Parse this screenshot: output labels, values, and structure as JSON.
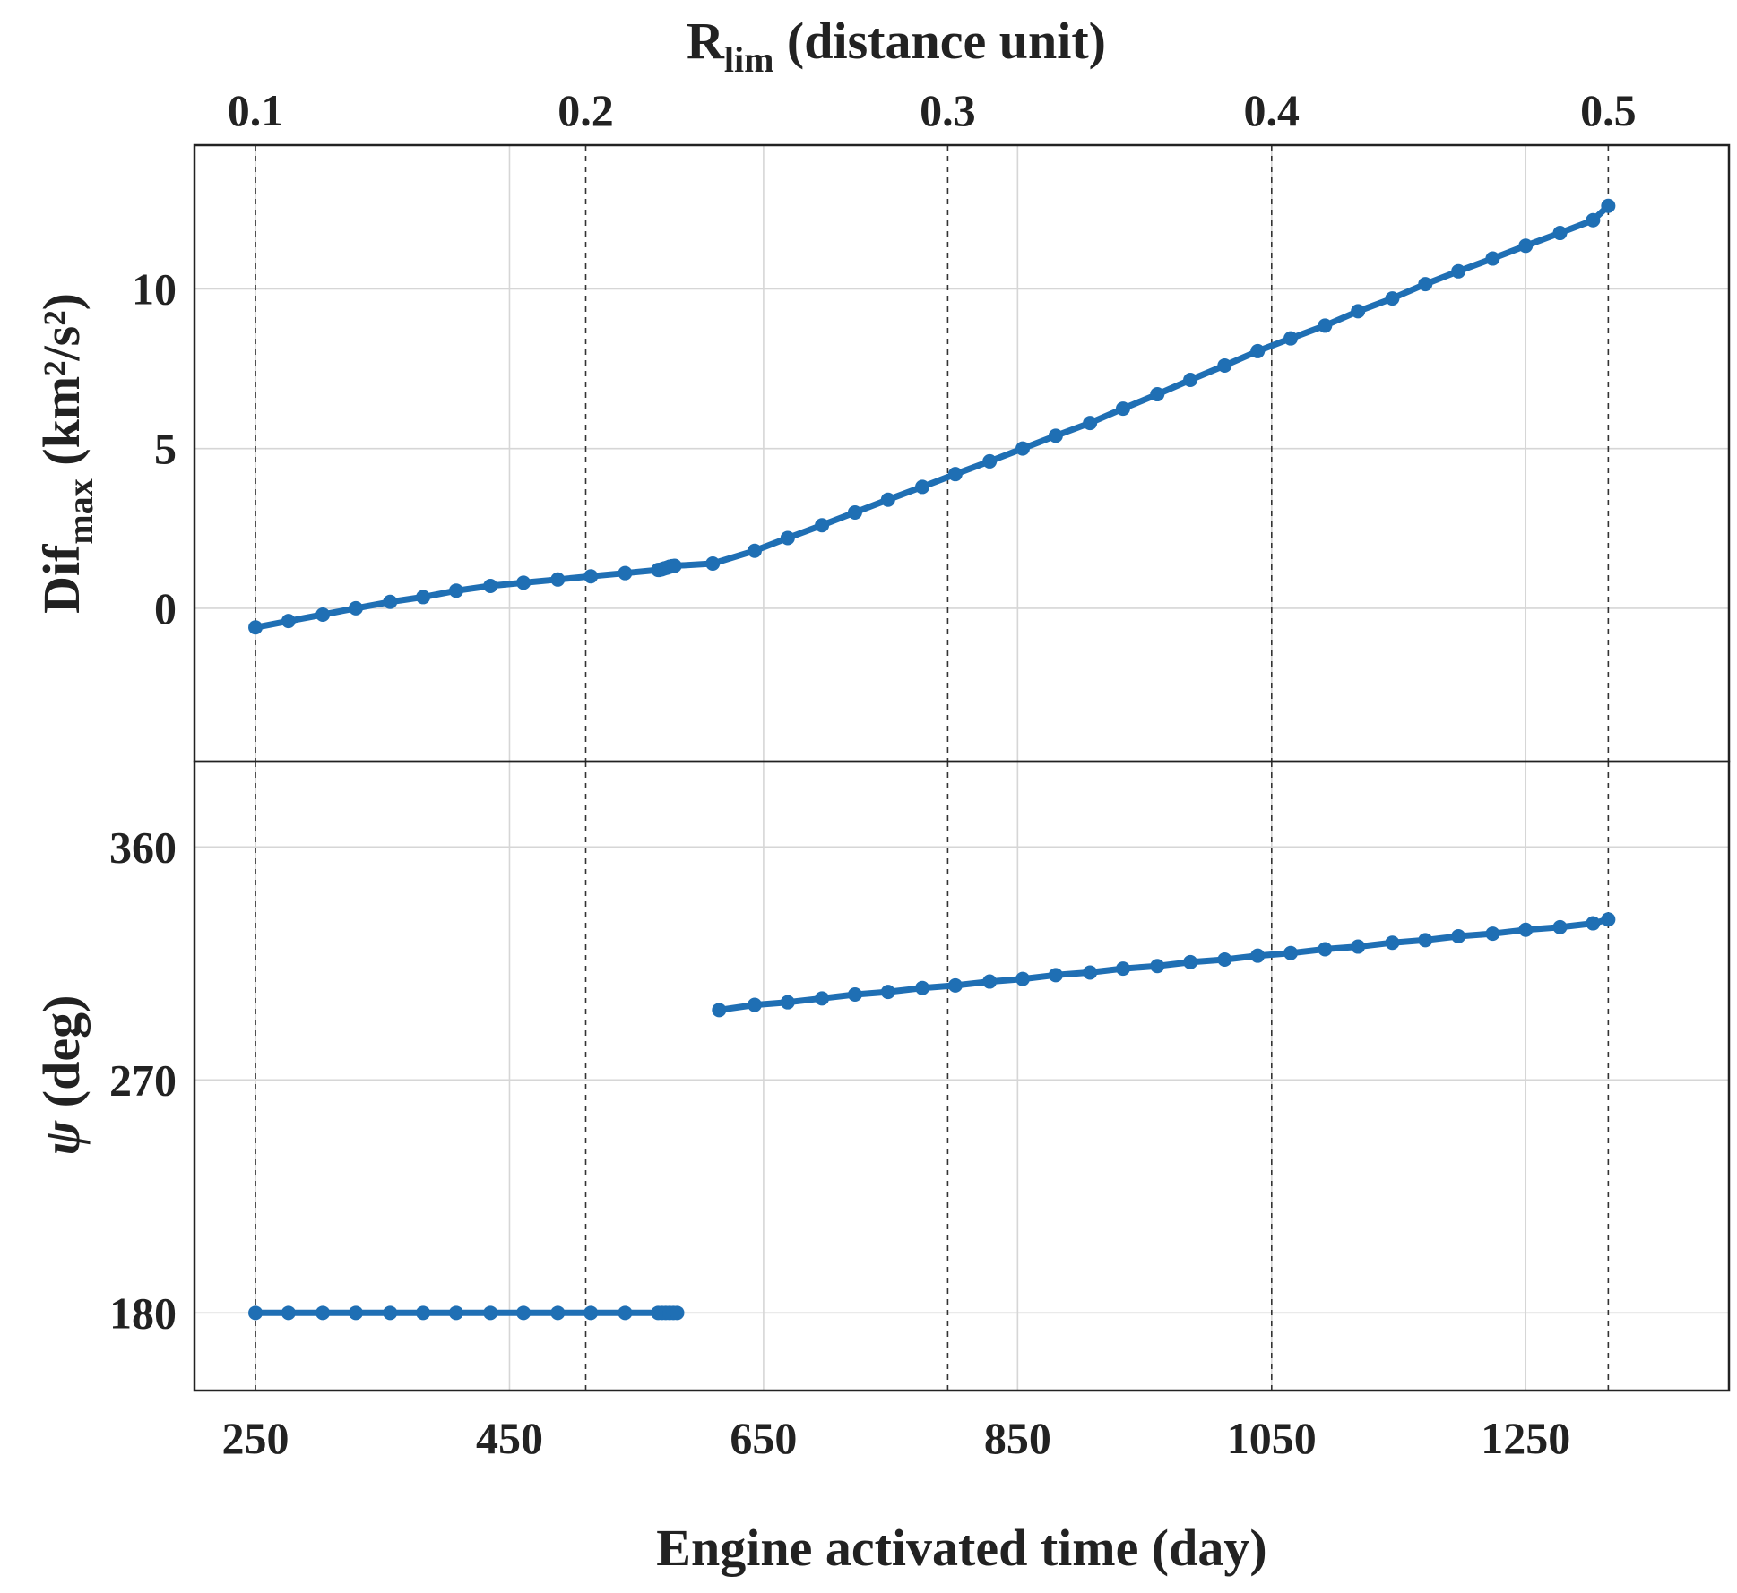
{
  "chart_data": {
    "type": "line",
    "top_axis": {
      "label_main": "R",
      "label_sub": "lim",
      "label_rest": " (distance unit)",
      "ticks": [
        {
          "label": "0.1",
          "x_day": 250
        },
        {
          "label": "0.2",
          "x_day": 510
        },
        {
          "label": "0.3",
          "x_day": 795
        },
        {
          "label": "0.4",
          "x_day": 1050
        },
        {
          "label": "0.5",
          "x_day": 1315
        }
      ]
    },
    "xaxis": {
      "label": "Engine activated time (day)",
      "ticks": [
        250,
        450,
        650,
        850,
        1050,
        1250
      ],
      "tick_labels": [
        "250",
        "450",
        "650",
        "850",
        "1050",
        "1250"
      ],
      "range": [
        202,
        1410
      ]
    },
    "color": "#1f6fb4",
    "panels": [
      {
        "name": "top",
        "ylabel_main": "Dif",
        "ylabel_sub": "max",
        "ylabel_rest": " (km²/s²)",
        "ylim": [
          -4.8,
          14.5
        ],
        "yticks": [
          0,
          5,
          10
        ],
        "ytick_labels": [
          "0",
          "5",
          "10"
        ],
        "series": [
          {
            "name": "Difmax",
            "x": [
              250,
              276,
              303,
              329,
              356,
              382,
              408,
              435,
              461,
              488,
              514,
              541,
              567,
              568,
              570,
              572,
              574,
              576,
              578,
              580,
              610,
              643,
              669,
              696,
              722,
              748,
              775,
              801,
              828,
              854,
              880,
              907,
              933,
              960,
              986,
              1013,
              1039,
              1065,
              1092,
              1118,
              1145,
              1171,
              1197,
              1224,
              1250,
              1277,
              1303,
              1315
            ],
            "y": [
              -0.6,
              -0.4,
              -0.2,
              0.0,
              0.2,
              0.35,
              0.55,
              0.7,
              0.8,
              0.9,
              1.0,
              1.1,
              1.2,
              1.2,
              1.22,
              1.25,
              1.27,
              1.3,
              1.32,
              1.33,
              1.4,
              1.8,
              2.2,
              2.6,
              3.0,
              3.4,
              3.8,
              4.2,
              4.6,
              5.0,
              5.4,
              5.8,
              6.25,
              6.7,
              7.15,
              7.6,
              8.05,
              8.45,
              8.85,
              9.3,
              9.7,
              10.15,
              10.55,
              10.95,
              11.35,
              11.75,
              12.15,
              12.6
            ]
          }
        ]
      },
      {
        "name": "bottom",
        "ylabel_main": "ψ",
        "ylabel_rest": " (deg)",
        "ylim": [
          150,
          393
        ],
        "yticks": [
          180,
          270,
          360
        ],
        "ytick_labels": [
          "180",
          "270",
          "360"
        ],
        "series": [
          {
            "name": "psi-low",
            "x": [
              250,
              276,
              303,
              329,
              356,
              382,
              408,
              435,
              461,
              488,
              514,
              541,
              567,
              570,
              573,
              576,
              579,
              582
            ],
            "y": [
              180,
              180,
              180,
              180,
              180,
              180,
              180,
              180,
              180,
              180,
              180,
              180,
              180,
              180,
              180,
              180,
              180,
              180
            ]
          },
          {
            "name": "psi-high",
            "x": [
              615,
              643,
              669,
              696,
              722,
              748,
              775,
              801,
              828,
              854,
              880,
              907,
              933,
              960,
              986,
              1013,
              1039,
              1065,
              1092,
              1118,
              1145,
              1171,
              1197,
              1224,
              1250,
              1277,
              1303,
              1315
            ],
            "y": [
              297,
              299,
              300,
              301.5,
              303,
              304,
              305.5,
              306.5,
              308,
              309,
              310.5,
              311.5,
              313,
              314,
              315.5,
              316.5,
              318,
              319,
              320.5,
              321.5,
              323,
              324,
              325.5,
              326.5,
              328,
              329,
              330.5,
              332
            ]
          }
        ]
      }
    ]
  }
}
